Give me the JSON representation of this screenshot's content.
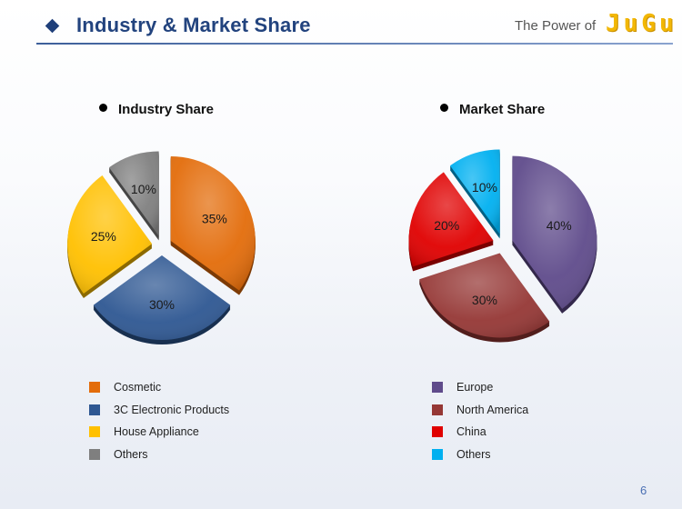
{
  "header": {
    "title": "Industry & Market Share",
    "power_text": "The Power of",
    "brand": "JuGu",
    "accent_color": "#22437e",
    "brand_color": "#f2b705"
  },
  "chart_data": [
    {
      "type": "pie",
      "title": "Industry Share",
      "categories": [
        "Cosmetic",
        "3C Electronic Products",
        "House Appliance",
        "Others"
      ],
      "values": [
        35,
        30,
        25,
        10
      ],
      "labels": [
        "35%",
        "30%",
        "25%",
        "10%"
      ],
      "colors": [
        "#e36c0a",
        "#2e5792",
        "#ffc000",
        "#7f7f7f"
      ],
      "start_angle_deg": 0,
      "explode": [
        true,
        true,
        true,
        true
      ],
      "legend_position": "bottom"
    },
    {
      "type": "pie",
      "title": "Market Share",
      "categories": [
        "Europe",
        "North America",
        "China",
        "Others"
      ],
      "values": [
        40,
        30,
        20,
        10
      ],
      "labels": [
        "40%",
        "30%",
        "20%",
        "10%"
      ],
      "colors": [
        "#5f4b8b",
        "#953735",
        "#e00000",
        "#00b0f0"
      ],
      "start_angle_deg": 0,
      "explode": [
        true,
        true,
        true,
        true
      ],
      "legend_position": "bottom"
    }
  ],
  "footer": {
    "page_number": "6"
  }
}
